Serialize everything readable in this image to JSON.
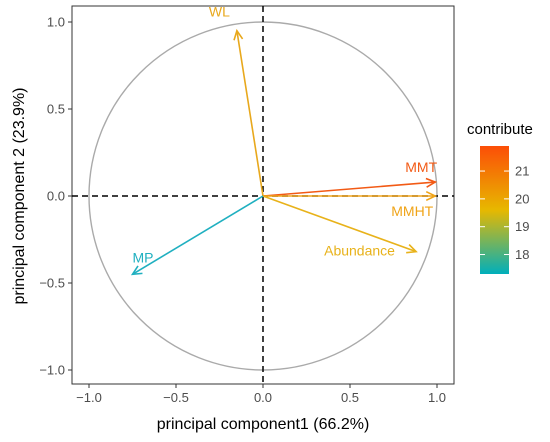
{
  "chart_data": {
    "type": "scatter",
    "subtype": "pca-variable-correlation-circle",
    "xlabel": "principal component1 (66.2%)",
    "ylabel": "principal component 2 (23.9%)",
    "xlim": [
      -1.0,
      1.0
    ],
    "ylim": [
      -1.0,
      1.0
    ],
    "x_ticks": [
      -1.0,
      -0.5,
      0.0,
      0.5,
      1.0
    ],
    "x_tick_labels": [
      "-1.0",
      "-0.5",
      "0.0",
      "0.5",
      "1.0"
    ],
    "y_ticks": [
      -1.0,
      -0.5,
      0.0,
      0.5,
      1.0
    ],
    "y_tick_labels": [
      "-1.0",
      "-0.5",
      "0.0",
      "0.5",
      "1.0"
    ],
    "grid": false,
    "unit_circle": true,
    "reference_lines": [
      {
        "orientation": "horizontal",
        "value": 0,
        "style": "dashed"
      },
      {
        "orientation": "vertical",
        "value": 0,
        "style": "dashed"
      }
    ],
    "vectors": [
      {
        "label": "WL",
        "x": -0.15,
        "y": 0.95,
        "contribute": 19.9,
        "color": "#e8a81c"
      },
      {
        "label": "MMT",
        "x": 0.99,
        "y": 0.08,
        "contribute": 21.7,
        "color": "#f25a15"
      },
      {
        "label": "MMHT",
        "x": 0.99,
        "y": 0.0,
        "contribute": 20.4,
        "color": "#f0a418"
      },
      {
        "label": "Abundance",
        "x": 0.88,
        "y": -0.32,
        "contribute": 19.9,
        "color": "#e8b21a"
      },
      {
        "label": "MP",
        "x": -0.75,
        "y": -0.45,
        "contribute": 17.5,
        "color": "#20b0c0"
      }
    ],
    "legend": {
      "title": "contribute",
      "position": "right",
      "min": 17.3,
      "max": 21.9,
      "ticks": [
        18,
        19,
        20,
        21
      ],
      "tick_labels": [
        "18",
        "19",
        "20",
        "21"
      ],
      "colors": [
        "#00afbb",
        "#e7b800",
        "#fc4e07"
      ]
    }
  }
}
